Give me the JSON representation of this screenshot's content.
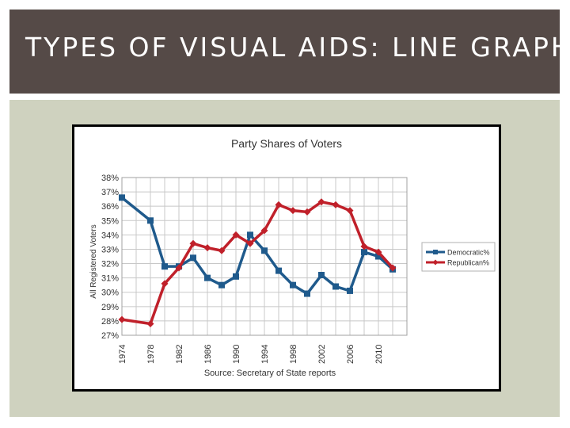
{
  "slide": {
    "title": "TYPES OF VISUAL AIDS: LINE GRAPH",
    "header_color": "#554a47",
    "panel_color": "#cfd2bf"
  },
  "chart_data": {
    "type": "line",
    "title": "Party Shares of Voters",
    "xlabel": "",
    "ylabel": "All Registered Voters",
    "source": "Source: Secretary of State reports",
    "y_tick_labels": [
      "27%",
      "28%",
      "29%",
      "30%",
      "31%",
      "32%",
      "33%",
      "34%",
      "35%",
      "36%",
      "37%",
      "38%"
    ],
    "x_tick_labels": [
      "1974",
      "1978",
      "1982",
      "1986",
      "1990",
      "1994",
      "1998",
      "2002",
      "2006",
      "2010"
    ],
    "ylim": [
      27,
      38
    ],
    "xlim": [
      1974,
      2014
    ],
    "grid": true,
    "legend_position": "right",
    "series": [
      {
        "name": "Democratic%",
        "color": "#1f5a8c",
        "marker": "square",
        "x": [
          1974,
          1978,
          1980,
          1982,
          1984,
          1986,
          1988,
          1990,
          1992,
          1994,
          1996,
          1998,
          2000,
          2002,
          2004,
          2006,
          2008,
          2010,
          2012
        ],
        "y": [
          36.6,
          35.0,
          31.8,
          31.8,
          32.4,
          31.0,
          30.5,
          31.1,
          34.0,
          32.9,
          31.5,
          30.5,
          29.9,
          31.2,
          30.4,
          30.1,
          32.8,
          32.5,
          31.6
        ]
      },
      {
        "name": "Republican%",
        "color": "#c0202a",
        "marker": "diamond",
        "x": [
          1974,
          1978,
          1980,
          1982,
          1984,
          1986,
          1988,
          1990,
          1992,
          1994,
          1996,
          1998,
          2000,
          2002,
          2004,
          2006,
          2008,
          2010,
          2012
        ],
        "y": [
          28.1,
          27.8,
          30.6,
          31.7,
          33.4,
          33.1,
          32.9,
          34.0,
          33.4,
          34.3,
          36.1,
          35.7,
          35.6,
          36.3,
          36.1,
          35.7,
          33.2,
          32.8,
          31.7
        ]
      }
    ]
  }
}
